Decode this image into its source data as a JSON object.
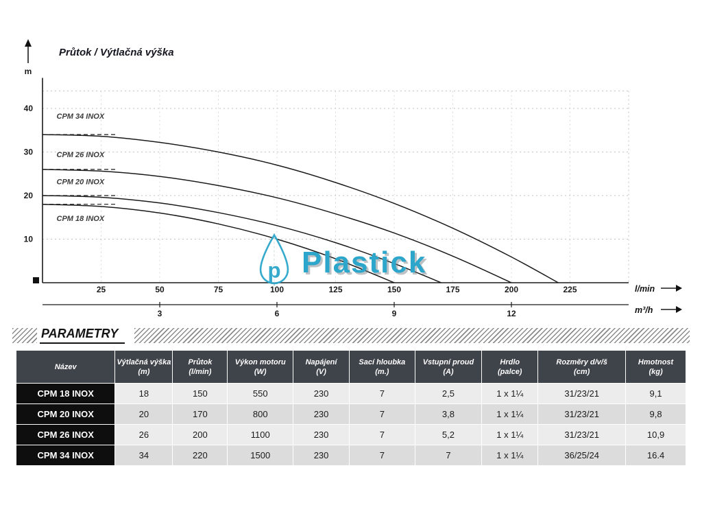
{
  "chart": {
    "title": "Průtok / Výtlačná výška"
  },
  "chart_data": {
    "type": "line",
    "title": "Průtok / Výtlačná výška",
    "xlabel": "l/min",
    "ylabel": "m",
    "xlim": [
      0,
      250
    ],
    "ylim": [
      0,
      47
    ],
    "x_ticks": [
      25,
      50,
      75,
      100,
      125,
      150,
      175,
      200,
      225
    ],
    "y_ticks": [
      10,
      20,
      30,
      40
    ],
    "secondary_axis": {
      "unit": "m³/h",
      "ticks": [
        3,
        6,
        9,
        12
      ],
      "lmin_per_unit": 16.6667
    },
    "grid": "dotted",
    "legend_position": "on-curve-left",
    "series": [
      {
        "name": "CPM 34 INOX",
        "shutoff_head_m": 34,
        "max_flow_lmin": 220,
        "label_pos": {
          "q": 6,
          "h": 37.6
        },
        "points": [
          [
            0,
            34
          ],
          [
            25,
            33.6
          ],
          [
            50,
            32.2
          ],
          [
            75,
            30.0
          ],
          [
            100,
            27.0
          ],
          [
            125,
            23.0
          ],
          [
            150,
            18.2
          ],
          [
            175,
            12.5
          ],
          [
            200,
            5.9
          ],
          [
            220,
            0
          ]
        ]
      },
      {
        "name": "CPM 26 INOX",
        "shutoff_head_m": 26,
        "max_flow_lmin": 200,
        "label_pos": {
          "q": 6,
          "h": 28.8
        },
        "points": [
          [
            0,
            26
          ],
          [
            25,
            25.6
          ],
          [
            50,
            24.4
          ],
          [
            75,
            22.3
          ],
          [
            100,
            19.5
          ],
          [
            125,
            15.8
          ],
          [
            150,
            11.4
          ],
          [
            175,
            6.1
          ],
          [
            200,
            0
          ]
        ]
      },
      {
        "name": "CPM 20 INOX",
        "shutoff_head_m": 20,
        "max_flow_lmin": 170,
        "label_pos": {
          "q": 6,
          "h": 22.6
        },
        "points": [
          [
            0,
            20
          ],
          [
            25,
            19.6
          ],
          [
            50,
            18.3
          ],
          [
            75,
            16.1
          ],
          [
            100,
            13.1
          ],
          [
            125,
            9.2
          ],
          [
            150,
            4.4
          ],
          [
            170,
            0
          ]
        ]
      },
      {
        "name": "CPM 18 INOX",
        "shutoff_head_m": 18,
        "max_flow_lmin": 150,
        "label_pos": {
          "q": 6,
          "h": 14.2
        },
        "points": [
          [
            0,
            18
          ],
          [
            25,
            17.5
          ],
          [
            50,
            16.0
          ],
          [
            75,
            13.5
          ],
          [
            100,
            10.0
          ],
          [
            125,
            5.5
          ],
          [
            150,
            0
          ]
        ]
      }
    ]
  },
  "watermark": {
    "text": "Plastick",
    "monogram": "p",
    "color": "#2CA6CB"
  },
  "parameters_section": {
    "heading": "PARAMETRY"
  },
  "table": {
    "columns": [
      {
        "title": "Název",
        "unit": ""
      },
      {
        "title": "Výtlačná výška",
        "unit": "(m)"
      },
      {
        "title": "Průtok",
        "unit": "(l/min)"
      },
      {
        "title": "Výkon motoru",
        "unit": "(W)"
      },
      {
        "title": "Napájení",
        "unit": "(V)"
      },
      {
        "title": "Sací hloubka",
        "unit": "(m.)"
      },
      {
        "title": "Vstupní proud",
        "unit": "(A)"
      },
      {
        "title": "Hrdlo",
        "unit": "(palce)"
      },
      {
        "title": "Rozměry d/v/š",
        "unit": "(cm)"
      },
      {
        "title": "Hmotnost",
        "unit": "(kg)"
      }
    ],
    "rows": [
      {
        "name": "CPM 18 INOX",
        "values": [
          "18",
          "150",
          "550",
          "230",
          "7",
          "2,5",
          "1 x 1¼",
          "31/23/21",
          "9,1"
        ]
      },
      {
        "name": "CPM 20 INOX",
        "values": [
          "20",
          "170",
          "800",
          "230",
          "7",
          "3,8",
          "1 x 1¼",
          "31/23/21",
          "9,8"
        ]
      },
      {
        "name": "CPM 26 INOX",
        "values": [
          "26",
          "200",
          "1100",
          "230",
          "7",
          "5,2",
          "1 x 1¼",
          "31/23/21",
          "10,9"
        ]
      },
      {
        "name": "CPM 34 INOX",
        "values": [
          "34",
          "220",
          "1500",
          "230",
          "7",
          "7",
          "1 x 1¼",
          "36/25/24",
          "16.4"
        ]
      }
    ]
  }
}
